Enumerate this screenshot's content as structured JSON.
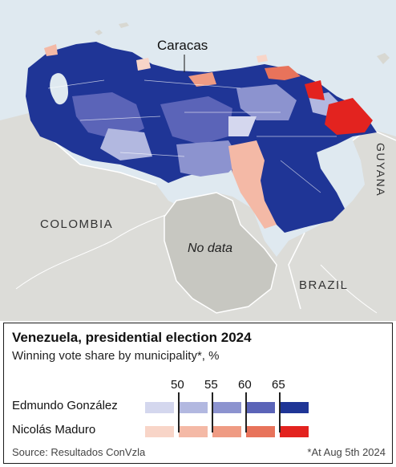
{
  "map": {
    "labels": {
      "caracas": "Caracas",
      "colombia": "COLOMBIA",
      "brazil": "BRAZIL",
      "guyana": "GUYANA",
      "no_data": "No data"
    }
  },
  "legend": {
    "title": "Venezuela, presidential election 2024",
    "subtitle": "Winning vote share by municipality*, %",
    "thresholds": [
      "50",
      "55",
      "60",
      "65"
    ],
    "rows": [
      {
        "name": "Edmundo González",
        "colors": [
          "#d4d7ee",
          "#b2b8e0",
          "#8c93cf",
          "#5b64b8",
          "#1f3596"
        ]
      },
      {
        "name": "Nicolás Maduro",
        "colors": [
          "#f8d5c8",
          "#f4b9a6",
          "#ef9b83",
          "#e8735b",
          "#e3231f"
        ]
      }
    ],
    "source": "Source: Resultados ConVzla",
    "footnote": "*At Aug 5th 2024"
  },
  "colors": {
    "accent": "#e3120b",
    "sea": "#dfe9f0",
    "land": "#dcdcd8",
    "no_data_fill": "#c7c7c1"
  }
}
